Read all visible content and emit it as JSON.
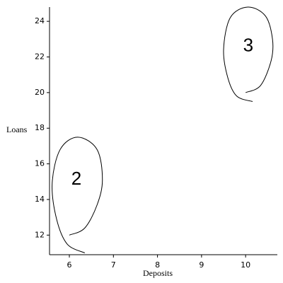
{
  "chart_data": {
    "type": "line",
    "xlabel": "Deposits",
    "ylabel": "Loans",
    "xlim": [
      5.55,
      10.72
    ],
    "ylim": [
      10.9,
      24.8
    ],
    "xticks": [
      6,
      7,
      8,
      9,
      10
    ],
    "yticks": [
      12,
      14,
      16,
      18,
      20,
      22,
      24
    ],
    "series": [
      {
        "color": "#000000",
        "x": [
          6.0,
          6.35,
          6.63,
          6.75,
          6.63,
          6.19,
          5.79,
          5.61,
          5.71,
          5.95,
          6.35
        ],
        "y": [
          12.0,
          12.4,
          13.7,
          15.1,
          16.8,
          17.5,
          16.8,
          14.9,
          12.9,
          11.5,
          11.0
        ]
      },
      {
        "color": "#000000",
        "x": [
          10.0,
          10.34,
          10.58,
          10.61,
          10.45,
          10.05,
          9.65,
          9.5,
          9.6,
          9.8,
          10.16
        ],
        "y": [
          20.0,
          20.4,
          21.8,
          23.0,
          24.3,
          24.8,
          24.2,
          22.4,
          20.8,
          19.8,
          19.5
        ]
      }
    ],
    "annotations": [
      {
        "text": "2",
        "x": 6.16,
        "y": 15.1
      },
      {
        "text": "3",
        "x": 10.06,
        "y": 22.6
      }
    ]
  }
}
